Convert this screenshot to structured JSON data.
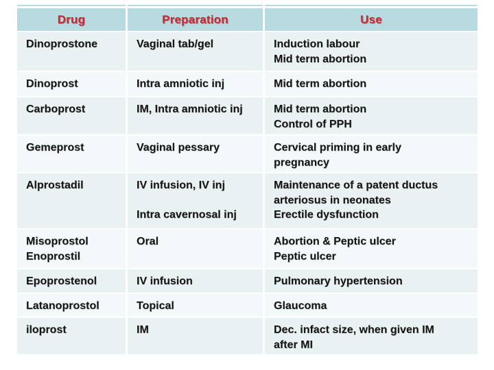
{
  "colors": {
    "page-bg": "#ffffff",
    "header-bg": "#b7dbe1",
    "header-text": "#c22b35",
    "row-odd": "#e9f1f3",
    "row-even": "#f3f8fa",
    "body-text": "#161616"
  },
  "table": {
    "headers": [
      "Drug",
      "Preparation",
      "Use"
    ],
    "rows": [
      {
        "drug": "Dinoprostone",
        "preparation": "Vaginal tab/gel",
        "use": "Induction labour\nMid term abortion"
      },
      {
        "drug": "Dinoprost",
        "preparation": "Intra amniotic inj",
        "use": "Mid term abortion"
      },
      {
        "drug": "Carboprost",
        "preparation": "IM, Intra amniotic inj",
        "use": "Mid term abortion\nControl of PPH"
      },
      {
        "drug": "Gemeprost",
        "preparation": "Vaginal pessary",
        "use": "Cervical priming in early\npregnancy"
      },
      {
        "drug": "Alprostadil",
        "preparation": "IV infusion, IV inj\n\nIntra cavernosal inj",
        "use": "Maintenance of a patent ductus\narteriosus in neonates\nErectile dysfunction"
      },
      {
        "drug": "Misoprostol\nEnoprostil",
        "preparation": "Oral",
        "use": "Abortion & Peptic ulcer\nPeptic ulcer"
      },
      {
        "drug": "Epoprostenol",
        "preparation": "IV infusion",
        "use": "Pulmonary hypertension"
      },
      {
        "drug": "Latanoprostol",
        "preparation": "Topical",
        "use": "Glaucoma"
      },
      {
        "drug": "iloprost",
        "preparation": "IM",
        "use": "Dec. infact size, when given IM\nafter MI"
      }
    ]
  }
}
